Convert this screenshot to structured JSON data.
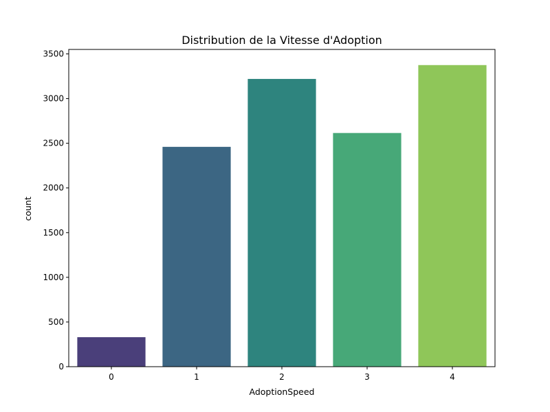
{
  "chart_data": {
    "type": "bar",
    "title": "Distribution de la Vitesse d'Adoption",
    "xlabel": "AdoptionSpeed",
    "ylabel": "count",
    "categories": [
      "0",
      "1",
      "2",
      "3",
      "4"
    ],
    "values": [
      330,
      2460,
      3220,
      2615,
      3375
    ],
    "colors": [
      "#4a3f7a",
      "#3c6683",
      "#2e847e",
      "#47a878",
      "#8fc659"
    ],
    "ylim": [
      0,
      3550
    ],
    "yticks": [
      0,
      500,
      1000,
      1500,
      2000,
      2500,
      3000,
      3500
    ],
    "grid": false,
    "legend": "none"
  }
}
